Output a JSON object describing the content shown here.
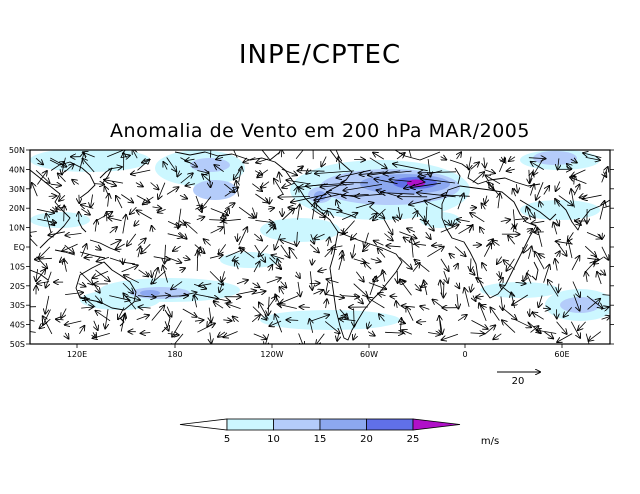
{
  "header": {
    "title": "INPE/CPTEC"
  },
  "map": {
    "title": "Anomalia de Vento em 200 hPa MAR/2005",
    "lat_labels": [
      "50N",
      "40N",
      "30N",
      "20N",
      "10N",
      "EQ",
      "10S",
      "20S",
      "30S",
      "40S",
      "50S"
    ],
    "lon_labels": [
      "120E",
      "180",
      "120W",
      "60W",
      "0",
      "60E"
    ],
    "reference_vector": {
      "label": "20"
    }
  },
  "colorbar": {
    "labels": [
      "5",
      "10",
      "15",
      "20",
      "25"
    ],
    "units": "m/s",
    "colors": [
      "#ffffff",
      "#ccf7ff",
      "#b4ccfa",
      "#8ca8f0",
      "#6070e8",
      "#b010c8"
    ]
  },
  "colors": {
    "shade_5": "#ccf7ff",
    "shade_10": "#b4ccfa",
    "shade_15": "#8ca8f0",
    "shade_20": "#6070e8",
    "shade_25": "#b010c8"
  }
}
